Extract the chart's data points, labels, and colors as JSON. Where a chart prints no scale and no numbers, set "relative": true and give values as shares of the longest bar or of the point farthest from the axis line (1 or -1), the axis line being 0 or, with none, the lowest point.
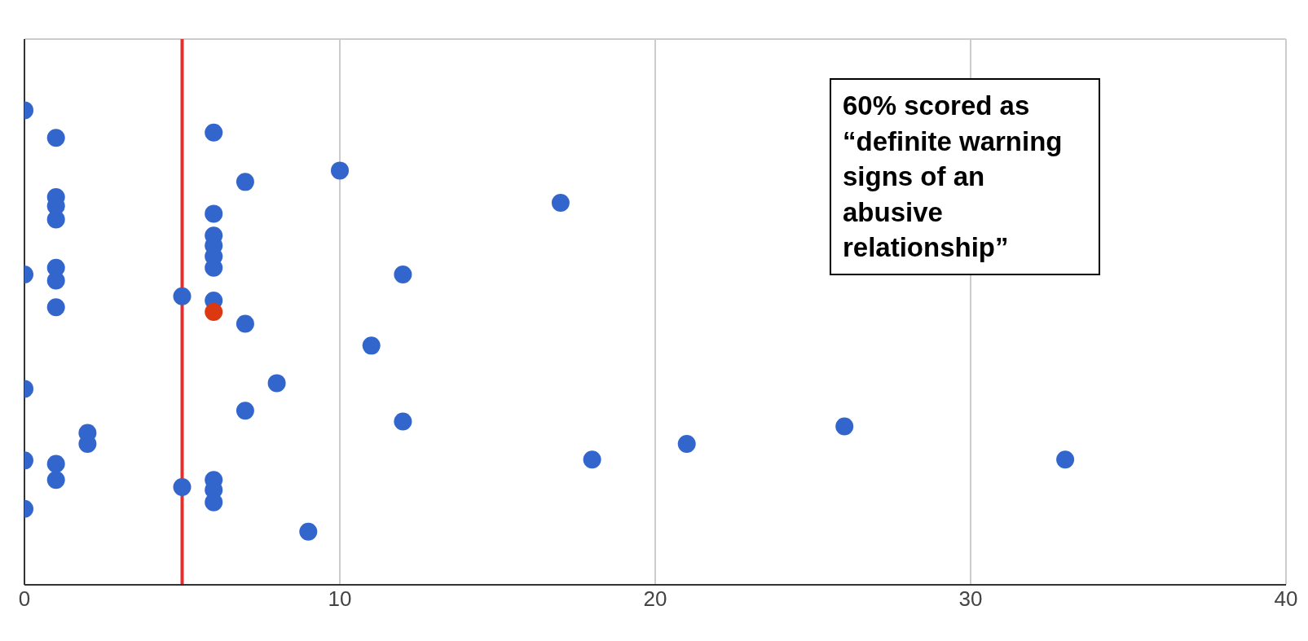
{
  "chart_data": {
    "type": "scatter",
    "relative": true,
    "xlim": [
      0,
      40
    ],
    "xticks": [
      0,
      10,
      20,
      30,
      40
    ],
    "grid": true,
    "marker": "circle",
    "series": [
      {
        "color": "#3366cc",
        "x": [
          0,
          0,
          0,
          0,
          0,
          1,
          1,
          1,
          1,
          1,
          1,
          1,
          1,
          1,
          2,
          2,
          5,
          5,
          6,
          6,
          6,
          6,
          6,
          6,
          6,
          6,
          6,
          6,
          7,
          7,
          7,
          8,
          9,
          10,
          11,
          12,
          12,
          17,
          18,
          21,
          26,
          33
        ],
        "values": [
          1,
          0.654,
          0.413,
          0.262,
          0.16,
          0.942,
          0.817,
          0.798,
          0.77,
          0.668,
          0.641,
          0.585,
          0.255,
          0.221,
          0.32,
          0.297,
          0.608,
          0.206,
          0.953,
          0.782,
          0.736,
          0.715,
          0.692,
          0.668,
          0.599,
          0.221,
          0.2,
          0.174,
          0.849,
          0.55,
          0.367,
          0.425,
          0.112,
          0.873,
          0.504,
          0.654,
          0.344,
          0.805,
          0.264,
          0.297,
          0.334,
          0.264
        ]
      },
      {
        "color": "#dc3912",
        "x": [
          6
        ],
        "values": [
          0.575
        ]
      }
    ],
    "ref_lines": [
      {
        "axis": "x",
        "value": 5,
        "color": "#e03030"
      }
    ],
    "annotations": [
      "60% scored as “definite warning signs of an abusive relationship”"
    ]
  }
}
